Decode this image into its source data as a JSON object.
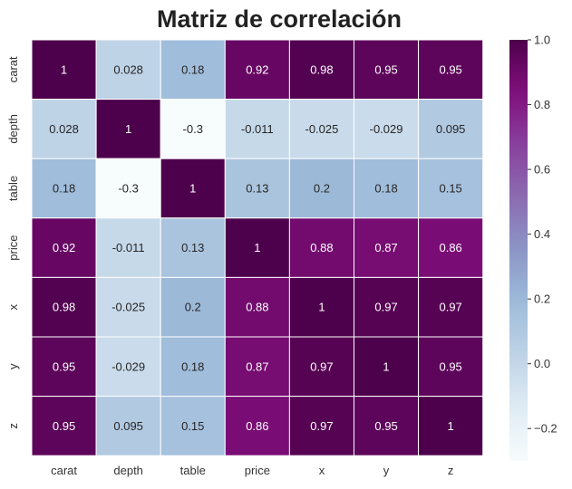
{
  "chart_data": {
    "type": "heatmap",
    "title": "Matriz de correlación",
    "xlabel": "",
    "ylabel": "",
    "x_categories": [
      "carat",
      "depth",
      "table",
      "price",
      "x",
      "y",
      "z"
    ],
    "y_categories": [
      "carat",
      "depth",
      "table",
      "price",
      "x",
      "y",
      "z"
    ],
    "values": [
      [
        1,
        0.028,
        0.18,
        0.92,
        0.98,
        0.95,
        0.95
      ],
      [
        0.028,
        1,
        -0.3,
        -0.011,
        -0.025,
        -0.029,
        0.095
      ],
      [
        0.18,
        -0.3,
        1,
        0.13,
        0.2,
        0.18,
        0.15
      ],
      [
        0.92,
        -0.011,
        0.13,
        1,
        0.88,
        0.87,
        0.86
      ],
      [
        0.98,
        -0.025,
        0.2,
        0.88,
        1,
        0.97,
        0.97
      ],
      [
        0.95,
        -0.029,
        0.18,
        0.87,
        0.97,
        1,
        0.95
      ],
      [
        0.95,
        0.095,
        0.15,
        0.86,
        0.97,
        0.95,
        1
      ]
    ],
    "value_labels": [
      [
        "1",
        "0.028",
        "0.18",
        "0.92",
        "0.98",
        "0.95",
        "0.95"
      ],
      [
        "0.028",
        "1",
        "-0.3",
        "-0.011",
        "-0.025",
        "-0.029",
        "0.095"
      ],
      [
        "0.18",
        "-0.3",
        "1",
        "0.13",
        "0.2",
        "0.18",
        "0.15"
      ],
      [
        "0.92",
        "-0.011",
        "0.13",
        "1",
        "0.88",
        "0.87",
        "0.86"
      ],
      [
        "0.98",
        "-0.025",
        "0.2",
        "0.88",
        "1",
        "0.97",
        "0.97"
      ],
      [
        "0.95",
        "-0.029",
        "0.18",
        "0.87",
        "0.97",
        "1",
        "0.95"
      ],
      [
        "0.95",
        "0.095",
        "0.15",
        "0.86",
        "0.97",
        "0.95",
        "1"
      ]
    ],
    "colormap": "BuPu",
    "color_range": [
      -0.3,
      1.0
    ],
    "colorbar_ticks": [
      -0.2,
      0.0,
      0.2,
      0.4,
      0.6,
      0.8,
      1.0
    ],
    "colorbar_tick_labels": [
      "−0.2",
      "0.0",
      "0.2",
      "0.4",
      "0.6",
      "0.8",
      "1.0"
    ],
    "colorbar_placement": "right",
    "grid": false
  },
  "colors": {
    "cell_border": "#ffffff",
    "text_dark": "#262626",
    "text_light": "#ffffff",
    "colormap_stops": [
      "#f7fcfd",
      "#e0ecf4",
      "#bfd3e6",
      "#9ebcda",
      "#8c96c6",
      "#8c6bb1",
      "#88419d",
      "#810f7c",
      "#4d004b"
    ]
  }
}
